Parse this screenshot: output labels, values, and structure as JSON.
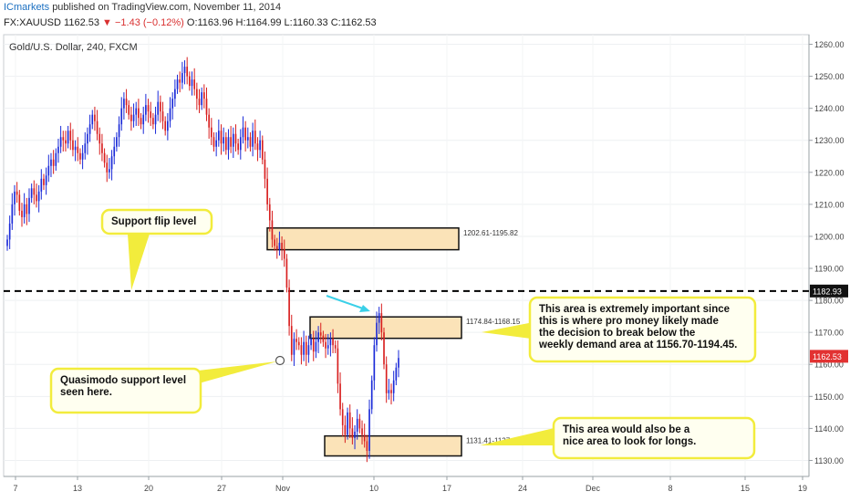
{
  "header": {
    "publisher": "ICmarkets",
    "published_text": "published on TradingView.com, November 11, 2014",
    "symbol": "FX:XAUUSD",
    "last": "1162.53",
    "change": "▼ −1.43 (−0.12%)",
    "open": "O:1163.96",
    "high": "H:1164.99",
    "low": "L:1160.33",
    "close": "C:1162.53"
  },
  "colors": {
    "up": "#1a2ad8",
    "down": "#d81e1e",
    "zone_fill": "#fbe3b8",
    "callout_fill": "#fffff0",
    "callout_border": "#f2ec3c",
    "callout_arrow": "#f2ec3c",
    "arrow_cyan": "#3ad0e8",
    "price_tag": "#e23232"
  },
  "chart_data": {
    "type": "candlestick",
    "title": "Gold/U.S. Dollar, 240, FXCM",
    "y_axis": {
      "min": 1125,
      "max": 1263,
      "ticks": [
        1130,
        1140,
        1150,
        1160,
        1170,
        1180,
        1190,
        1200,
        1210,
        1220,
        1230,
        1240,
        1250,
        1260
      ],
      "side": "right"
    },
    "x_axis": {
      "labels": [
        "7",
        "13",
        "20",
        "27",
        "Nov",
        "10",
        "17",
        "24",
        "Dec",
        "8",
        "15",
        "19"
      ]
    },
    "current_price": {
      "value": 1162.53,
      "label": "1162.53"
    },
    "levels": [
      {
        "name": "support-flip",
        "value": 1182.93,
        "label": "1182.93",
        "style": "dashed"
      }
    ],
    "zones": [
      {
        "name": "zone-upper",
        "high": 1202.61,
        "low": 1195.82,
        "label": "1202.61-1195.82"
      },
      {
        "name": "zone-middle",
        "high": 1174.84,
        "low": 1168.15,
        "label": "1174.84-1168.15"
      },
      {
        "name": "zone-lower",
        "high": 1137.65,
        "low": 1131.41,
        "label": "1131.41-1137.65"
      }
    ],
    "annotations": [
      {
        "name": "support-flip-label",
        "text": "Support flip level"
      },
      {
        "name": "quasimodo-label",
        "text": "Quasimodo support level seen here."
      },
      {
        "name": "important-area-label",
        "text": "This area is extremely important since this is where pro money likely made the decision to break below the weekly demand area at 1156.70-1194.45."
      },
      {
        "name": "longs-area-label",
        "text": "This area would also be a nice area to look for longs."
      }
    ],
    "closes": [
      1199,
      1204,
      1210,
      1214,
      1213,
      1208,
      1206,
      1210,
      1207,
      1212,
      1215,
      1213,
      1211,
      1214,
      1218,
      1216,
      1219,
      1222,
      1224,
      1222,
      1226,
      1228,
      1231,
      1230,
      1229,
      1233,
      1230,
      1227,
      1228,
      1226,
      1224,
      1226,
      1229,
      1232,
      1235,
      1238,
      1236,
      1232,
      1229,
      1226,
      1223,
      1220,
      1221,
      1225,
      1228,
      1231,
      1235,
      1240,
      1243,
      1241,
      1238,
      1236,
      1238,
      1240,
      1237,
      1235,
      1238,
      1241,
      1239,
      1237,
      1235,
      1238,
      1242,
      1239,
      1236,
      1233,
      1236,
      1240,
      1243,
      1246,
      1249,
      1248,
      1251,
      1253,
      1250,
      1247,
      1249,
      1246,
      1243,
      1241,
      1245,
      1243,
      1238,
      1234,
      1231,
      1228,
      1230,
      1233,
      1229,
      1231,
      1227,
      1231,
      1228,
      1232,
      1229,
      1227,
      1231,
      1234,
      1230,
      1231,
      1228,
      1233,
      1229,
      1227,
      1230,
      1224,
      1218,
      1210,
      1205,
      1199,
      1197,
      1196,
      1198,
      1196,
      1193,
      1184,
      1172,
      1163,
      1168,
      1167,
      1166,
      1163,
      1167,
      1163,
      1166,
      1168,
      1164,
      1167,
      1170,
      1169,
      1167,
      1165,
      1166,
      1168,
      1166,
      1165,
      1154,
      1146,
      1141,
      1138,
      1145,
      1140,
      1137,
      1139,
      1143,
      1140,
      1138,
      1136,
      1133,
      1146,
      1155,
      1166,
      1173,
      1176,
      1170,
      1160,
      1151,
      1152,
      1151,
      1155,
      1159,
      1162
    ]
  }
}
